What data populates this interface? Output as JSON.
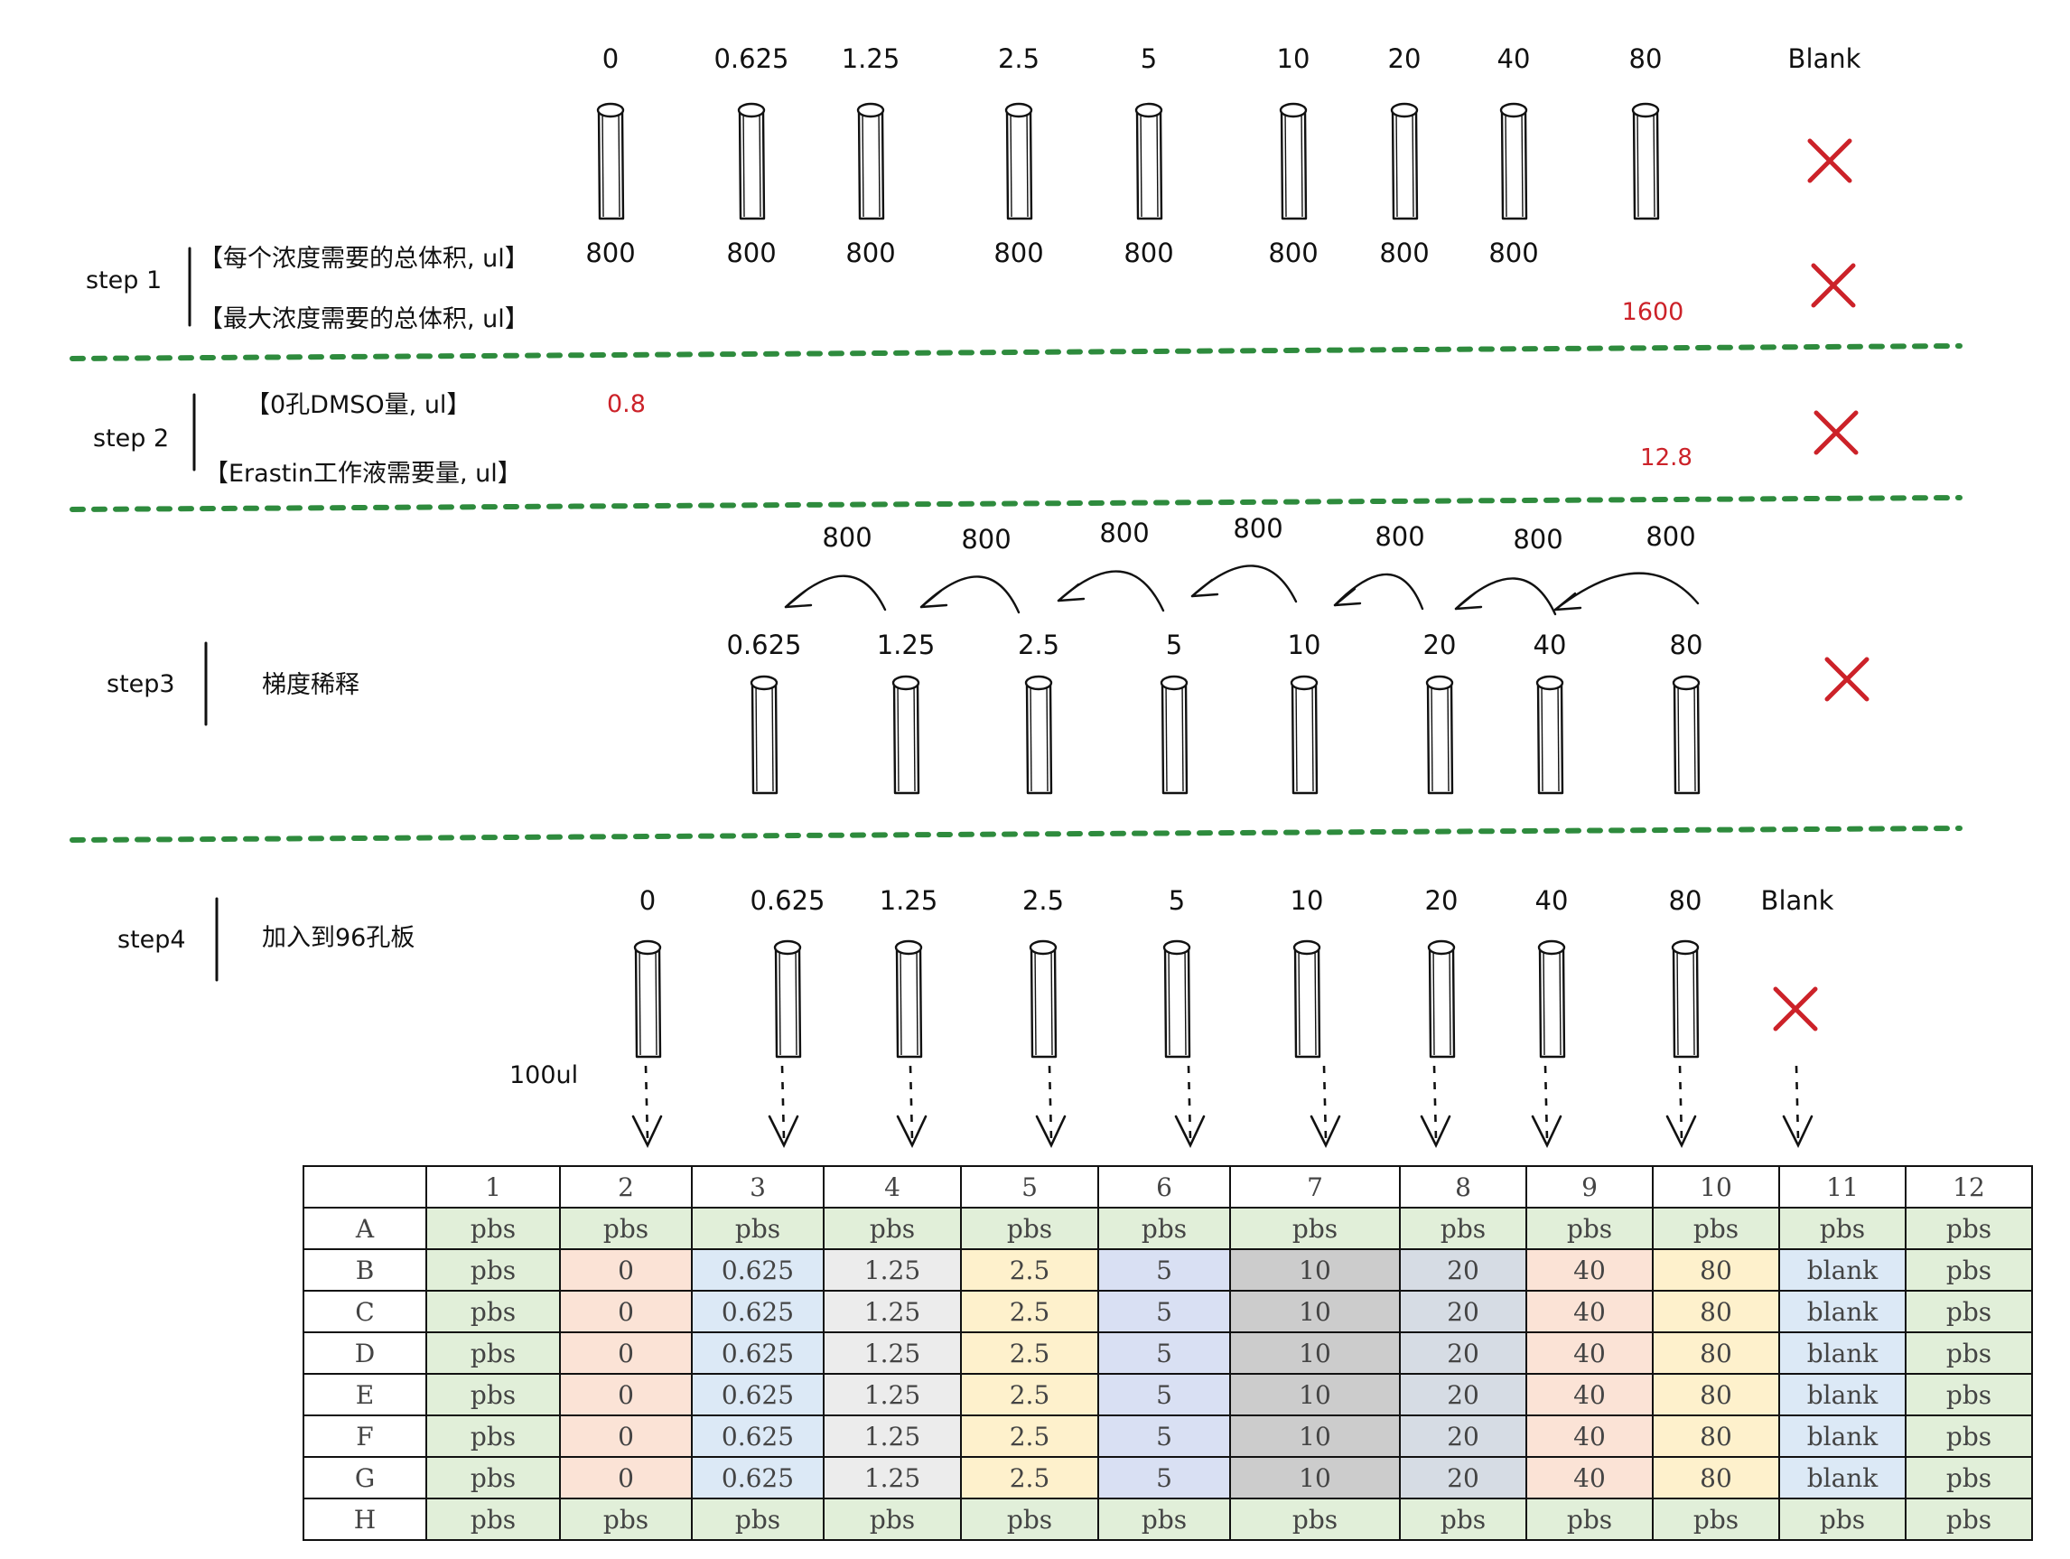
{
  "step1": {
    "label": "step 1",
    "concentrations": [
      "0",
      "0.625",
      "1.25",
      "2.5",
      "5",
      "10",
      "20",
      "40",
      "80",
      "Blank"
    ],
    "row1_label": "【每个浓度需要的总体积, ul】",
    "row1_values": [
      "800",
      "800",
      "800",
      "800",
      "800",
      "800",
      "800",
      "800"
    ],
    "row2_label": "【最大浓度需要的总体积, ul】",
    "row2_value": "1600"
  },
  "step2": {
    "label": "step 2",
    "row1_label": "【0孔DMSO量, ul】",
    "row1_value": "0.8",
    "row2_label": "【Erastin工作液需要量, ul】",
    "row2_value": "12.8"
  },
  "step3": {
    "label": "step3",
    "description": "梯度稀释",
    "transfer_volumes": [
      "800",
      "800",
      "800",
      "800",
      "800",
      "800",
      "800"
    ],
    "concentrations": [
      "0.625",
      "1.25",
      "2.5",
      "5",
      "10",
      "20",
      "40",
      "80"
    ]
  },
  "step4": {
    "label": "step4",
    "description": "加入到96孔板",
    "concentrations": [
      "0",
      "0.625",
      "1.25",
      "2.5",
      "5",
      "10",
      "20",
      "40",
      "80",
      "Blank"
    ],
    "volume": "100ul"
  },
  "plate": {
    "columns": [
      "",
      "1",
      "2",
      "3",
      "4",
      "5",
      "6",
      "7",
      "8",
      "9",
      "10",
      "11",
      "12"
    ],
    "rows": [
      [
        "A",
        "pbs",
        "pbs",
        "pbs",
        "pbs",
        "pbs",
        "pbs",
        "pbs",
        "pbs",
        "pbs",
        "pbs",
        "pbs",
        "pbs"
      ],
      [
        "B",
        "pbs",
        "0",
        "0.625",
        "1.25",
        "2.5",
        "5",
        "10",
        "20",
        "40",
        "80",
        "blank",
        "pbs"
      ],
      [
        "C",
        "pbs",
        "0",
        "0.625",
        "1.25",
        "2.5",
        "5",
        "10",
        "20",
        "40",
        "80",
        "blank",
        "pbs"
      ],
      [
        "D",
        "pbs",
        "0",
        "0.625",
        "1.25",
        "2.5",
        "5",
        "10",
        "20",
        "40",
        "80",
        "blank",
        "pbs"
      ],
      [
        "E",
        "pbs",
        "0",
        "0.625",
        "1.25",
        "2.5",
        "5",
        "10",
        "20",
        "40",
        "80",
        "blank",
        "pbs"
      ],
      [
        "F",
        "pbs",
        "0",
        "0.625",
        "1.25",
        "2.5",
        "5",
        "10",
        "20",
        "40",
        "80",
        "blank",
        "pbs"
      ],
      [
        "G",
        "pbs",
        "0",
        "0.625",
        "1.25",
        "2.5",
        "5",
        "10",
        "20",
        "40",
        "80",
        "blank",
        "pbs"
      ],
      [
        "H",
        "pbs",
        "pbs",
        "pbs",
        "pbs",
        "pbs",
        "pbs",
        "pbs",
        "pbs",
        "pbs",
        "pbs",
        "pbs",
        "pbs"
      ]
    ],
    "colors": {
      "pbs": "#e1efd9",
      "0": "#fbe3d6",
      "0.625": "#dce9f6",
      "1.25": "#ececec",
      "2.5": "#fef1cc",
      "5": "#d9e0f3",
      "10": "#cccccc",
      "20": "#d6dce4",
      "40": "#fbe3d6",
      "80": "#fef1cc",
      "blank": "#dce9f6"
    }
  },
  "colors": {
    "divider": "#2e8b3d",
    "cross": "#cc2229",
    "highlight_text": "#cc2229"
  }
}
